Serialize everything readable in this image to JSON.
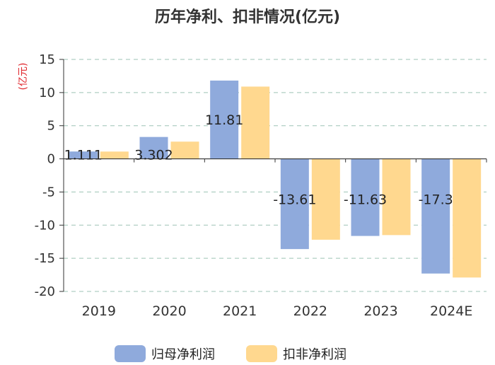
{
  "chart_data": {
    "type": "bar",
    "title": "历年净利、扣非情况(亿元)",
    "ylabel": "(亿元)",
    "xlabel": "",
    "categories": [
      "2019",
      "2020",
      "2021",
      "2022",
      "2023",
      "2024E"
    ],
    "ylim": [
      -20,
      15
    ],
    "yticks": [
      15,
      10,
      5,
      0,
      -5,
      -10,
      -15,
      -20
    ],
    "grid": true,
    "legend_position": "bottom",
    "series": [
      {
        "name": "归母净利润",
        "color": "#8FAADC",
        "values": [
          1.111,
          3.302,
          11.81,
          -13.61,
          -11.63,
          -17.3
        ],
        "data_labels": [
          "1.111",
          "3.302",
          "11.81",
          "-13.61",
          "-11.63",
          "-17.3"
        ]
      },
      {
        "name": "扣非净利润",
        "color": "#FFD88F",
        "values": [
          1.1,
          2.6,
          10.9,
          -12.2,
          -11.5,
          -17.9
        ]
      }
    ]
  },
  "colors": {
    "axis": "#333333",
    "grid": "#9DC3B5",
    "ylabel": "#E0262C"
  }
}
